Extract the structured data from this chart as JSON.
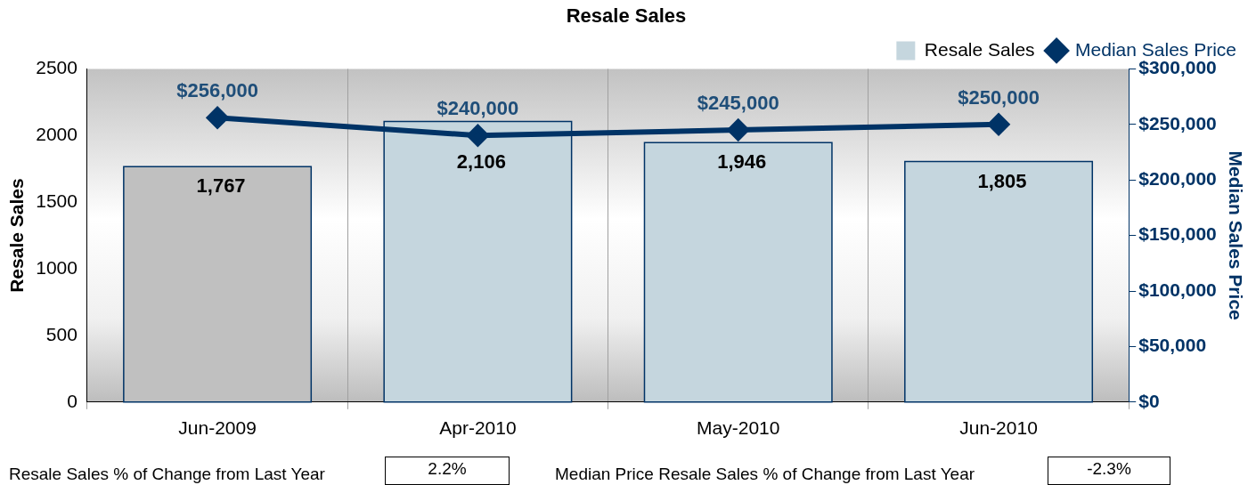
{
  "chart_data": {
    "type": "bar",
    "title": "Resale Sales",
    "categories": [
      "Jun-2009",
      "Apr-2010",
      "May-2010",
      "Jun-2010"
    ],
    "series": [
      {
        "name": "Resale Sales",
        "color": "#c5d6de",
        "values": [
          null,
          2106,
          1946,
          1805
        ],
        "value_labels": [
          null,
          "2,106",
          "1,946",
          "1,805"
        ]
      },
      {
        "name": "Median Sales Price",
        "type": "line",
        "axis": "y2",
        "color": "#003366",
        "marker": "diamond",
        "values": [
          256000,
          240000,
          245000,
          250000
        ],
        "value_labels": [
          "$256,000",
          "$240,000",
          "$245,000",
          "$250,000"
        ]
      },
      {
        "color": "#c0c0c0",
        "values": [
          1767,
          null,
          null,
          null
        ],
        "value_labels": [
          "1,767",
          null,
          null,
          null
        ]
      }
    ],
    "ylabel": "Resale Sales",
    "y2label": "Median Sales Price",
    "ylim": [
      0,
      2500
    ],
    "yticks": [
      0,
      500,
      1000,
      1500,
      2000,
      2500
    ],
    "y2lim": [
      0,
      300000
    ],
    "y2ticks": [
      {
        "value": 0,
        "label": "$0"
      },
      {
        "value": 50000,
        "label": "$50,000"
      },
      {
        "value": 100000,
        "label": "$100,000"
      },
      {
        "value": 150000,
        "label": "$150,000"
      },
      {
        "value": 200000,
        "label": "$200,000"
      },
      {
        "value": 250000,
        "label": "$250,000"
      },
      {
        "value": 300000,
        "label": "$300,000"
      }
    ],
    "grid": "x",
    "legend": "top right",
    "annotations": [
      "Resale Sales % of Change from Last Year",
      "2.2%",
      "Median Price Resale Sales % of Change from Last Year",
      "-2.3%"
    ]
  }
}
